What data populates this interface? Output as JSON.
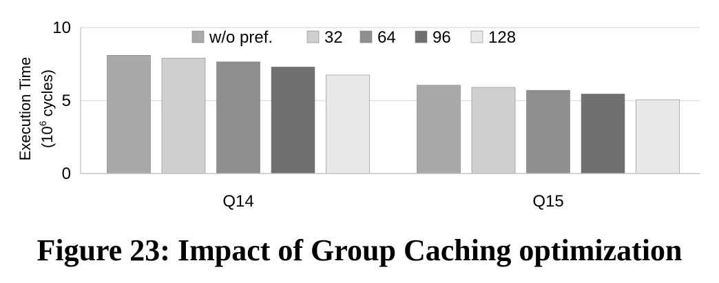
{
  "caption": "Figure 23: Impact of Group Caching optimization",
  "chart_data": {
    "type": "bar",
    "ylabel_line1": "Execution Time",
    "ylabel_line2_prefix": "(10",
    "ylabel_line2_sup": "6",
    "ylabel_line2_suffix": " cycles)",
    "ylim": [
      0,
      10
    ],
    "yticks": [
      "0",
      "5",
      "10"
    ],
    "grid": true,
    "legend_position": "top",
    "categories": [
      "Q14",
      "Q15"
    ],
    "series": [
      {
        "name": "w/o pref.",
        "color": "#a9a9a9",
        "values": [
          8.1,
          6.05
        ]
      },
      {
        "name": "32",
        "color": "#cfcfcf",
        "values": [
          7.9,
          5.9
        ]
      },
      {
        "name": "64",
        "color": "#8f8f8f",
        "values": [
          7.65,
          5.7
        ]
      },
      {
        "name": "96",
        "color": "#707070",
        "values": [
          7.3,
          5.45
        ]
      },
      {
        "name": "128",
        "color": "#e9e9e9",
        "values": [
          6.75,
          5.05
        ]
      }
    ]
  }
}
